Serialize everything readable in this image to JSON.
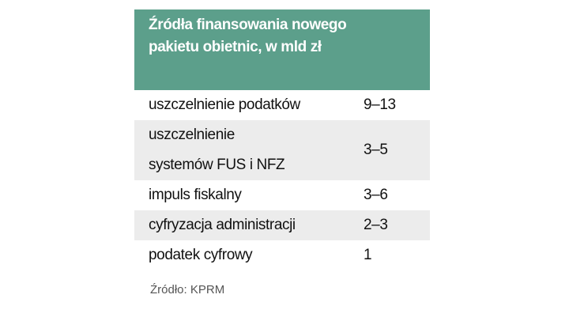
{
  "header": {
    "title": [
      "Źródła finansowania nowego",
      "pakietu obietnic, w mld zł"
    ]
  },
  "table": {
    "rows": [
      {
        "label": [
          "uszczelnienie podatków"
        ],
        "value": "9–13"
      },
      {
        "label": [
          "uszczelnienie",
          "systemów FUS i NFZ"
        ],
        "value": "3–5"
      },
      {
        "label": [
          "impuls fiskalny"
        ],
        "value": "3–6"
      },
      {
        "label": [
          "cyfryzacja administracji"
        ],
        "value": "2–3"
      },
      {
        "label": [
          "podatek cyfrowy"
        ],
        "value": "1"
      }
    ]
  },
  "source": "Źródło: KPRM"
}
